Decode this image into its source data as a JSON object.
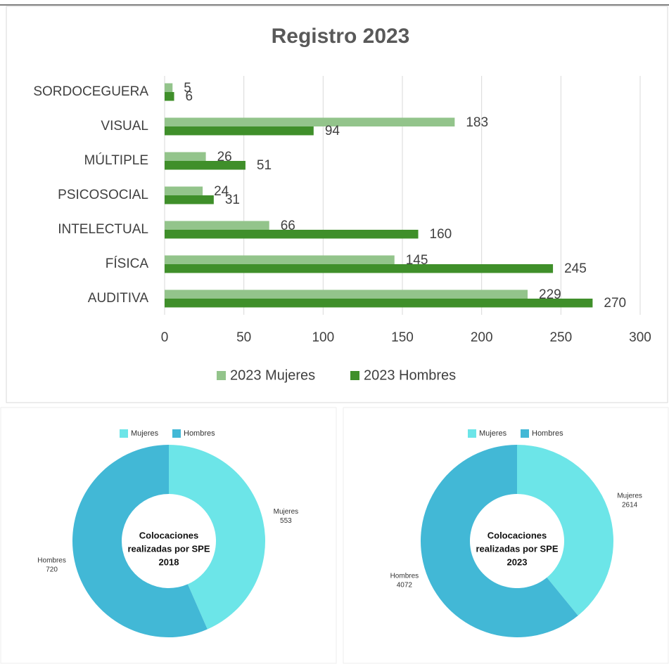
{
  "chart_data": [
    {
      "type": "bar",
      "orientation": "horizontal",
      "title": "Registro 2023",
      "categories": [
        "SORDOCEGUERA",
        "VISUAL",
        "MÚLTIPLE",
        "PSICOSOCIAL",
        "INTELECTUAL",
        "FÍSICA",
        "AUDITIVA"
      ],
      "series": [
        {
          "name": "2023 Mujeres",
          "color": "#93c48b",
          "values": [
            5,
            183,
            26,
            24,
            66,
            145,
            229
          ]
        },
        {
          "name": "2023 Hombres",
          "color": "#3f8f2a",
          "values": [
            6,
            94,
            51,
            31,
            160,
            245,
            270
          ]
        }
      ],
      "xlim": [
        0,
        300
      ],
      "xticks": [
        0,
        50,
        100,
        150,
        200,
        250,
        300
      ],
      "grid": true,
      "legend": "bottom"
    },
    {
      "type": "donut",
      "title": [
        "Colocaciones",
        "realizadas por SPE",
        "2018"
      ],
      "categories": [
        "Mujeres",
        "Hombres"
      ],
      "values": [
        553,
        720
      ],
      "colors": [
        "#6ce5e8",
        "#42b8d6"
      ],
      "legend": "top"
    },
    {
      "type": "donut",
      "title": [
        "Colocaciones",
        "realizadas por SPE",
        "2023"
      ],
      "categories": [
        "Mujeres",
        "Hombres"
      ],
      "values": [
        2614,
        4072
      ],
      "colors": [
        "#6ce5e8",
        "#42b8d6"
      ],
      "legend": "top"
    }
  ]
}
